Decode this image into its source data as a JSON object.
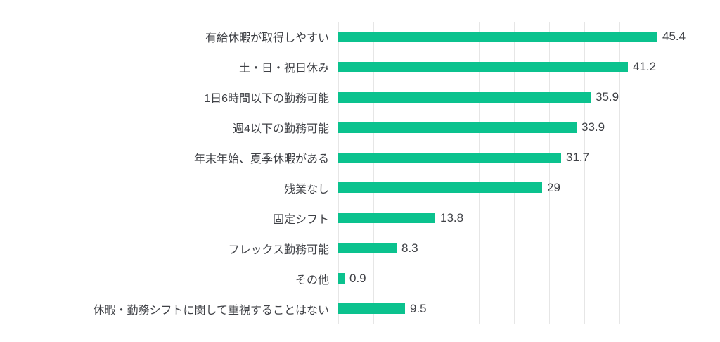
{
  "chart_data": {
    "type": "bar",
    "orientation": "horizontal",
    "title": "",
    "xlabel": "",
    "ylabel": "",
    "legend": "none",
    "grid": "vertical-only",
    "xlim": [
      0,
      50
    ],
    "gridline_interval": 5,
    "categories": [
      "有給休暇が取得しやすい",
      "土・日・祝日休み",
      "1日6時間以下の勤務可能",
      "週4以下の勤務可能",
      "年末年始、夏季休暇がある",
      "残業なし",
      "固定シフト",
      "フレックス勤務可能",
      "その他",
      "休暇・勤務シフトに関して重視することはない"
    ],
    "values": [
      45.4,
      41.2,
      35.9,
      33.9,
      31.7,
      29,
      13.8,
      8.3,
      0.9,
      9.5
    ],
    "value_labels": [
      "45.4",
      "41.2",
      "35.9",
      "33.9",
      "31.7",
      "29",
      "13.8",
      "8.3",
      "0.9",
      "9.5"
    ],
    "colors": {
      "bar": "#0bc28e",
      "gridline": "#e6e6e6",
      "label_text": "#3f4146",
      "background": "#ffffff"
    }
  }
}
